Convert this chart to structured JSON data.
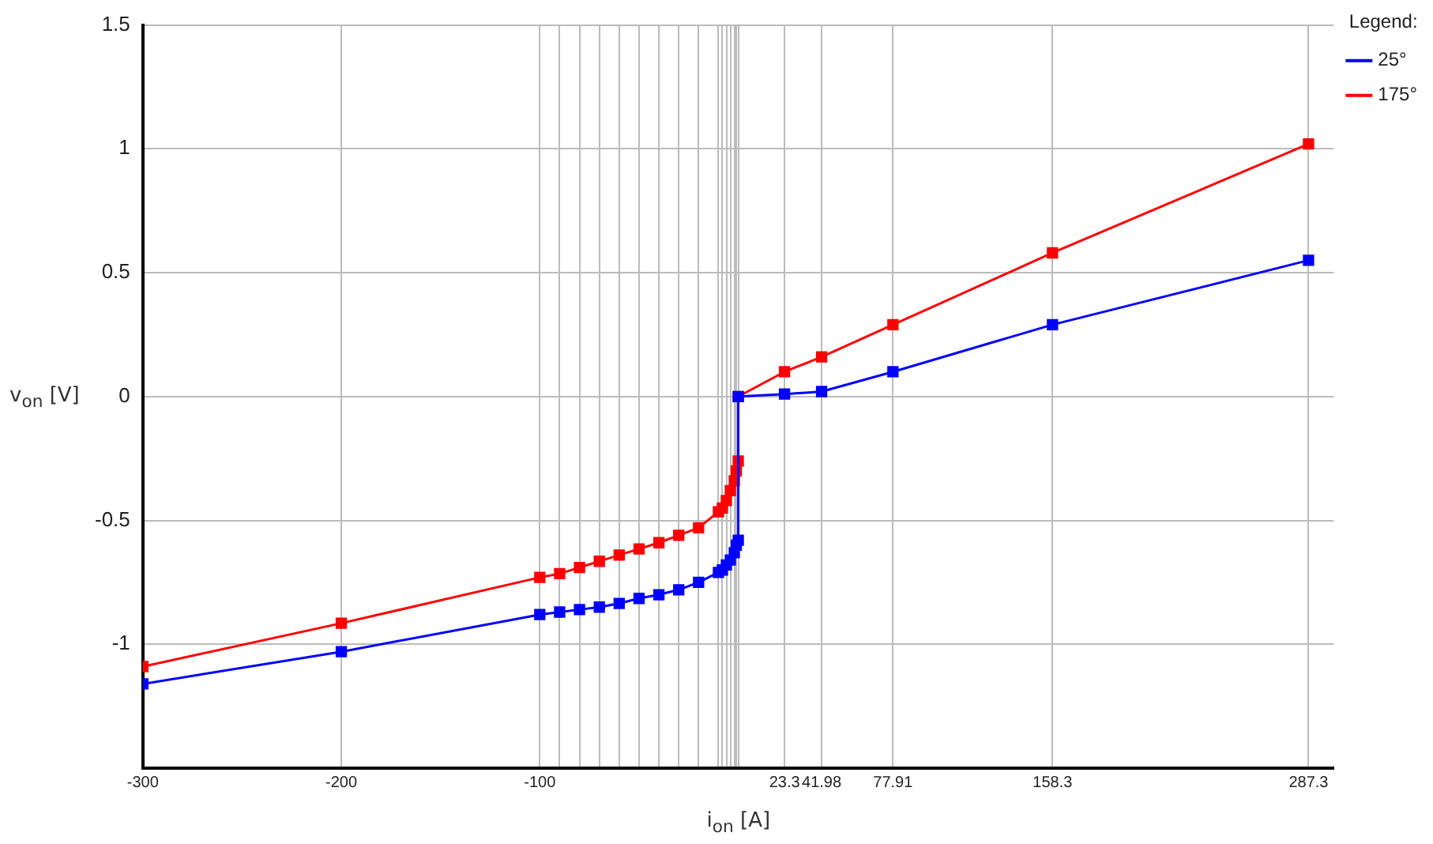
{
  "chart_data": {
    "type": "line",
    "xlabel": "i$_{on}$ [A]",
    "ylabel": "v$_{on}$ [V]",
    "legend_title": "Legend:",
    "legend": "top right",
    "grid": true,
    "marker": "square",
    "line_style": "solid",
    "xlim": [
      -300,
      300
    ],
    "ylim": [
      -1.5,
      1.5
    ],
    "xticks": [
      -300,
      -200,
      -100,
      {
        "value": -90,
        "label": null
      },
      {
        "value": -80,
        "label": null
      },
      {
        "value": -70,
        "label": null
      },
      {
        "value": -60,
        "label": null
      },
      {
        "value": -50,
        "label": null
      },
      {
        "value": -40,
        "label": null
      },
      {
        "value": -30,
        "label": null
      },
      {
        "value": -20,
        "label": null
      },
      {
        "value": -10,
        "label": null
      },
      {
        "value": -8,
        "label": null
      },
      {
        "value": -6,
        "label": null
      },
      {
        "value": -4,
        "label": null
      },
      {
        "value": -2,
        "label": null
      },
      {
        "value": -1,
        "label": null
      },
      {
        "value": 0,
        "label": null
      },
      23.3,
      41.98,
      77.91,
      158.3,
      287.3
    ],
    "yticks": [
      -1,
      -0.5,
      0,
      0.5,
      1,
      1.5
    ],
    "series": [
      {
        "name": "25°",
        "color": "#0000ff",
        "x": [
          -300,
          -200,
          -100,
          -90,
          -80,
          -70,
          -60,
          -50,
          -40,
          -30,
          -20,
          -10,
          -8,
          -6,
          -4,
          -2,
          -1,
          0,
          0,
          23.3,
          41.98,
          77.91,
          158.3,
          287.3
        ],
        "values": [
          -1.16,
          -1.03,
          -0.88,
          -0.87,
          -0.86,
          -0.85,
          -0.835,
          -0.815,
          -0.8,
          -0.78,
          -0.75,
          -0.71,
          -0.7,
          -0.68,
          -0.66,
          -0.63,
          -0.6,
          -0.58,
          0,
          0.01,
          0.02,
          0.1,
          0.29,
          0.55
        ]
      },
      {
        "name": "175°",
        "color": "#ff0000",
        "x": [
          -300,
          -200,
          -100,
          -90,
          -80,
          -70,
          -60,
          -50,
          -40,
          -30,
          -20,
          -10,
          -8,
          -6,
          -4,
          -2,
          -1,
          0,
          0,
          23.3,
          41.98,
          77.91,
          158.3,
          287.3
        ],
        "values": [
          -1.09,
          -0.915,
          -0.73,
          -0.715,
          -0.69,
          -0.665,
          -0.64,
          -0.615,
          -0.59,
          -0.56,
          -0.53,
          -0.465,
          -0.45,
          -0.42,
          -0.38,
          -0.34,
          -0.3,
          -0.26,
          0,
          0.1,
          0.16,
          0.29,
          0.58,
          1.02
        ]
      }
    ]
  }
}
